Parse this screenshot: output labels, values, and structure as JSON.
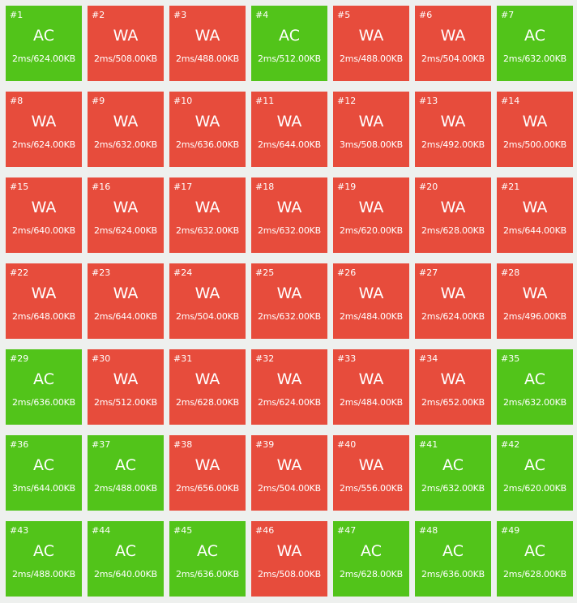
{
  "colors": {
    "AC": "#52c41a",
    "WA": "#e74c3c"
  },
  "testcases": [
    {
      "num": "#1",
      "verdict": "AC",
      "stats": "2ms/624.00KB"
    },
    {
      "num": "#2",
      "verdict": "WA",
      "stats": "2ms/508.00KB"
    },
    {
      "num": "#3",
      "verdict": "WA",
      "stats": "2ms/488.00KB"
    },
    {
      "num": "#4",
      "verdict": "AC",
      "stats": "2ms/512.00KB"
    },
    {
      "num": "#5",
      "verdict": "WA",
      "stats": "2ms/488.00KB"
    },
    {
      "num": "#6",
      "verdict": "WA",
      "stats": "2ms/504.00KB"
    },
    {
      "num": "#7",
      "verdict": "AC",
      "stats": "2ms/632.00KB"
    },
    {
      "num": "#8",
      "verdict": "WA",
      "stats": "2ms/624.00KB"
    },
    {
      "num": "#9",
      "verdict": "WA",
      "stats": "2ms/632.00KB"
    },
    {
      "num": "#10",
      "verdict": "WA",
      "stats": "2ms/636.00KB"
    },
    {
      "num": "#11",
      "verdict": "WA",
      "stats": "2ms/644.00KB"
    },
    {
      "num": "#12",
      "verdict": "WA",
      "stats": "3ms/508.00KB"
    },
    {
      "num": "#13",
      "verdict": "WA",
      "stats": "2ms/492.00KB"
    },
    {
      "num": "#14",
      "verdict": "WA",
      "stats": "2ms/500.00KB"
    },
    {
      "num": "#15",
      "verdict": "WA",
      "stats": "2ms/640.00KB"
    },
    {
      "num": "#16",
      "verdict": "WA",
      "stats": "2ms/624.00KB"
    },
    {
      "num": "#17",
      "verdict": "WA",
      "stats": "2ms/632.00KB"
    },
    {
      "num": "#18",
      "verdict": "WA",
      "stats": "2ms/632.00KB"
    },
    {
      "num": "#19",
      "verdict": "WA",
      "stats": "2ms/620.00KB"
    },
    {
      "num": "#20",
      "verdict": "WA",
      "stats": "2ms/628.00KB"
    },
    {
      "num": "#21",
      "verdict": "WA",
      "stats": "2ms/644.00KB"
    },
    {
      "num": "#22",
      "verdict": "WA",
      "stats": "2ms/648.00KB"
    },
    {
      "num": "#23",
      "verdict": "WA",
      "stats": "2ms/644.00KB"
    },
    {
      "num": "#24",
      "verdict": "WA",
      "stats": "2ms/504.00KB"
    },
    {
      "num": "#25",
      "verdict": "WA",
      "stats": "2ms/632.00KB"
    },
    {
      "num": "#26",
      "verdict": "WA",
      "stats": "2ms/484.00KB"
    },
    {
      "num": "#27",
      "verdict": "WA",
      "stats": "2ms/624.00KB"
    },
    {
      "num": "#28",
      "verdict": "WA",
      "stats": "2ms/496.00KB"
    },
    {
      "num": "#29",
      "verdict": "AC",
      "stats": "2ms/636.00KB"
    },
    {
      "num": "#30",
      "verdict": "WA",
      "stats": "2ms/512.00KB"
    },
    {
      "num": "#31",
      "verdict": "WA",
      "stats": "2ms/628.00KB"
    },
    {
      "num": "#32",
      "verdict": "WA",
      "stats": "2ms/624.00KB"
    },
    {
      "num": "#33",
      "verdict": "WA",
      "stats": "2ms/484.00KB"
    },
    {
      "num": "#34",
      "verdict": "WA",
      "stats": "2ms/652.00KB"
    },
    {
      "num": "#35",
      "verdict": "AC",
      "stats": "2ms/632.00KB"
    },
    {
      "num": "#36",
      "verdict": "AC",
      "stats": "3ms/644.00KB"
    },
    {
      "num": "#37",
      "verdict": "AC",
      "stats": "2ms/488.00KB"
    },
    {
      "num": "#38",
      "verdict": "WA",
      "stats": "2ms/656.00KB"
    },
    {
      "num": "#39",
      "verdict": "WA",
      "stats": "2ms/504.00KB"
    },
    {
      "num": "#40",
      "verdict": "WA",
      "stats": "2ms/556.00KB"
    },
    {
      "num": "#41",
      "verdict": "AC",
      "stats": "2ms/632.00KB"
    },
    {
      "num": "#42",
      "verdict": "AC",
      "stats": "2ms/620.00KB"
    },
    {
      "num": "#43",
      "verdict": "AC",
      "stats": "2ms/488.00KB"
    },
    {
      "num": "#44",
      "verdict": "AC",
      "stats": "2ms/640.00KB"
    },
    {
      "num": "#45",
      "verdict": "AC",
      "stats": "2ms/636.00KB"
    },
    {
      "num": "#46",
      "verdict": "WA",
      "stats": "2ms/508.00KB"
    },
    {
      "num": "#47",
      "verdict": "AC",
      "stats": "2ms/628.00KB"
    },
    {
      "num": "#48",
      "verdict": "AC",
      "stats": "2ms/636.00KB"
    },
    {
      "num": "#49",
      "verdict": "AC",
      "stats": "2ms/628.00KB"
    }
  ]
}
